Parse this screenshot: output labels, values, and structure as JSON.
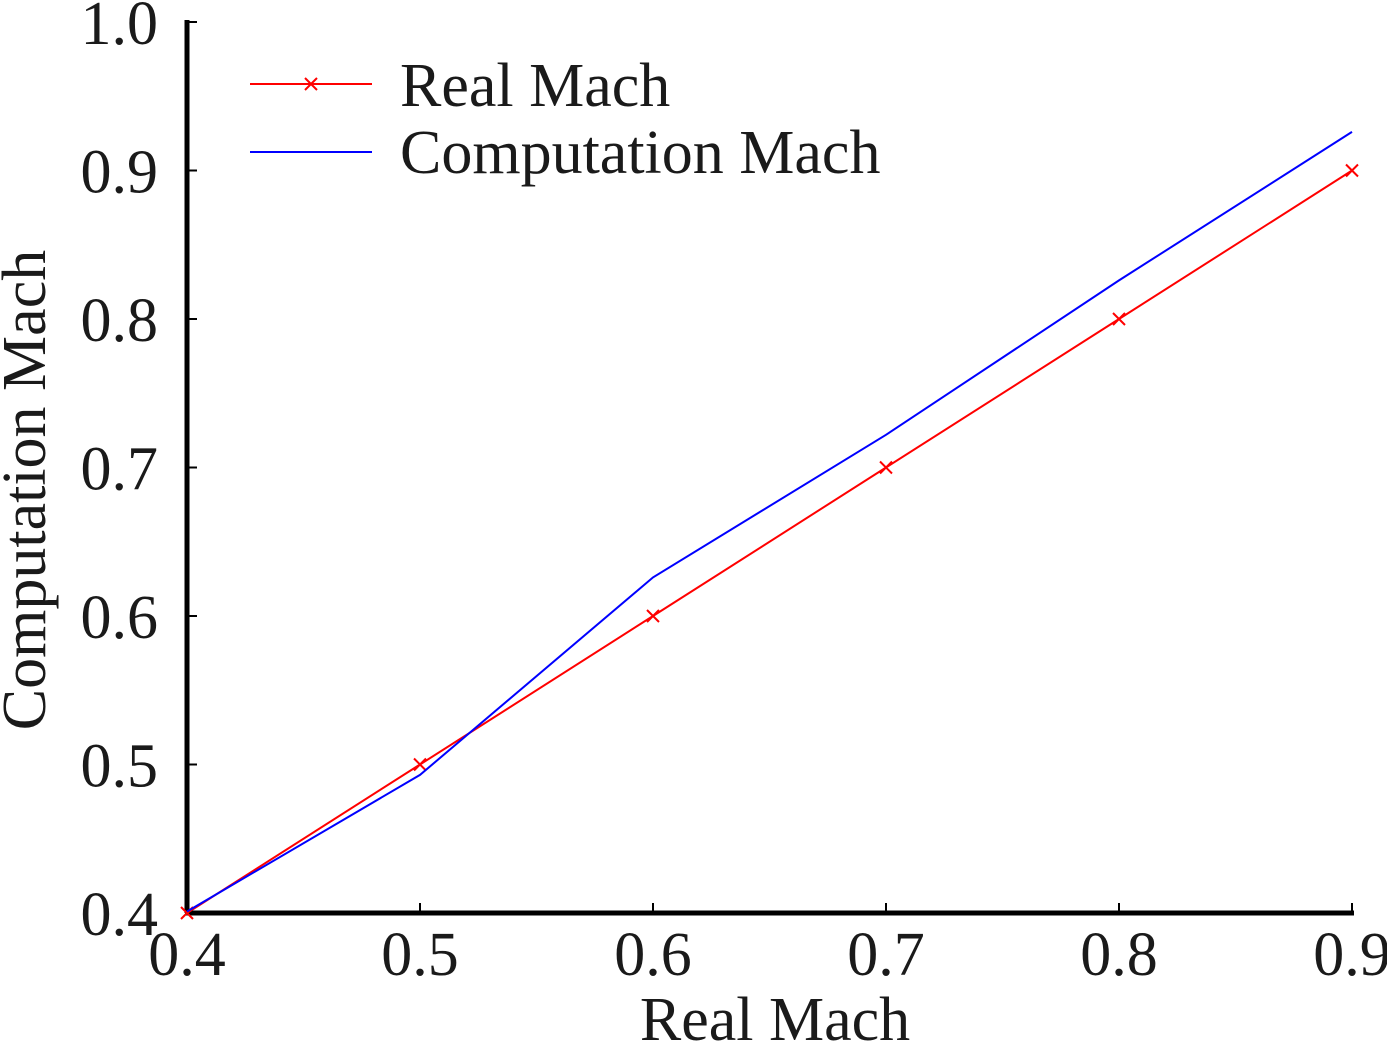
{
  "chart_data": {
    "type": "line",
    "title": "",
    "xlabel": "Real Mach",
    "ylabel": "Computation Mach",
    "xlim": [
      0.4,
      0.9
    ],
    "ylim": [
      0.4,
      1.0
    ],
    "xticks": [
      {
        "value": 0.4,
        "label": "0.4"
      },
      {
        "value": 0.5,
        "label": "0.5"
      },
      {
        "value": 0.6,
        "label": "0.6"
      },
      {
        "value": 0.7,
        "label": "0.7"
      },
      {
        "value": 0.8,
        "label": "0.8"
      },
      {
        "value": 0.9,
        "label": "0.9"
      }
    ],
    "yticks": [
      {
        "value": 0.4,
        "label": "0.4"
      },
      {
        "value": 0.5,
        "label": "0.5"
      },
      {
        "value": 0.6,
        "label": "0.6"
      },
      {
        "value": 0.7,
        "label": "0.7"
      },
      {
        "value": 0.8,
        "label": "0.8"
      },
      {
        "value": 0.9,
        "label": "0.9"
      },
      {
        "value": 1.0,
        "label": "1.0"
      }
    ],
    "grid": false,
    "legend_position": "top-left",
    "series": [
      {
        "name": "Real Mach",
        "color": "#ff0000",
        "marker": "x",
        "x": [
          0.4,
          0.5,
          0.6,
          0.7,
          0.8,
          0.9
        ],
        "y": [
          0.4,
          0.5,
          0.6,
          0.7,
          0.8,
          0.9
        ]
      },
      {
        "name": "Computation Mach",
        "color": "#0000ff",
        "marker": "none",
        "x": [
          0.4,
          0.5,
          0.6,
          0.7,
          0.8,
          0.9
        ],
        "y": [
          0.401,
          0.493,
          0.626,
          0.722,
          0.826,
          0.926
        ]
      }
    ]
  }
}
